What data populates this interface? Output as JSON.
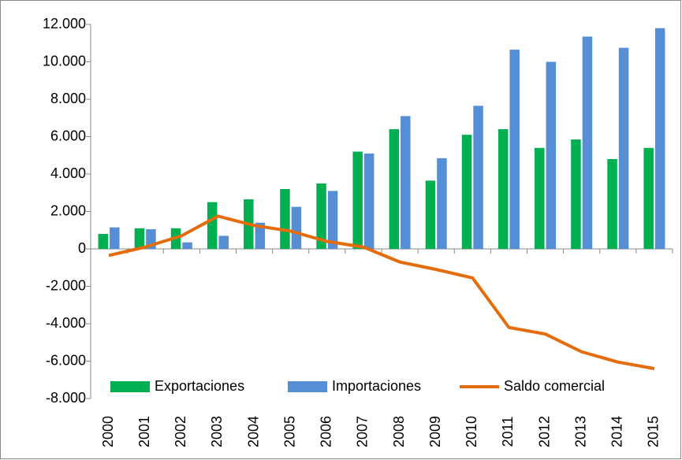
{
  "chart_data": {
    "type": "bar-line",
    "categories": [
      "2000",
      "2001",
      "2002",
      "2003",
      "2004",
      "2005",
      "2006",
      "2007",
      "2008",
      "2009",
      "2010",
      "2011",
      "2012",
      "2013",
      "2014",
      "2015"
    ],
    "series": [
      {
        "name": "Exportaciones",
        "color": "#00b050",
        "kind": "bar",
        "values": [
          800,
          1100,
          1100,
          2500,
          2650,
          3200,
          3500,
          5200,
          6400,
          3650,
          6100,
          6400,
          5400,
          5850,
          4800,
          5400
        ]
      },
      {
        "name": "Importaciones",
        "color": "#558ed5",
        "kind": "bar",
        "values": [
          1150,
          1050,
          350,
          700,
          1400,
          2250,
          3100,
          5100,
          7100,
          4850,
          7650,
          10650,
          10000,
          11350,
          10750,
          11800
        ]
      },
      {
        "name": "Saldo comercial",
        "color": "#e46c0a",
        "kind": "line",
        "values": [
          -350,
          100,
          700,
          1750,
          1250,
          950,
          400,
          100,
          -700,
          -1100,
          -1550,
          -4200,
          -4550,
          -5500,
          -6050,
          -6400
        ]
      }
    ],
    "ylim": [
      -8000,
      12000
    ],
    "yticks": [
      {
        "value": -8000,
        "label": "-8.000"
      },
      {
        "value": -6000,
        "label": "-6.000"
      },
      {
        "value": -4000,
        "label": "-4.000"
      },
      {
        "value": -2000,
        "label": "-2.000"
      },
      0,
      {
        "value": 2000,
        "label": "2.000"
      },
      {
        "value": 4000,
        "label": "4.000"
      },
      {
        "value": 6000,
        "label": "6.000"
      },
      {
        "value": 8000,
        "label": "8.000"
      },
      {
        "value": 10000,
        "label": "10.000"
      },
      {
        "value": 12000,
        "label": "12.000"
      }
    ],
    "grid": false,
    "legend": "bottom"
  }
}
